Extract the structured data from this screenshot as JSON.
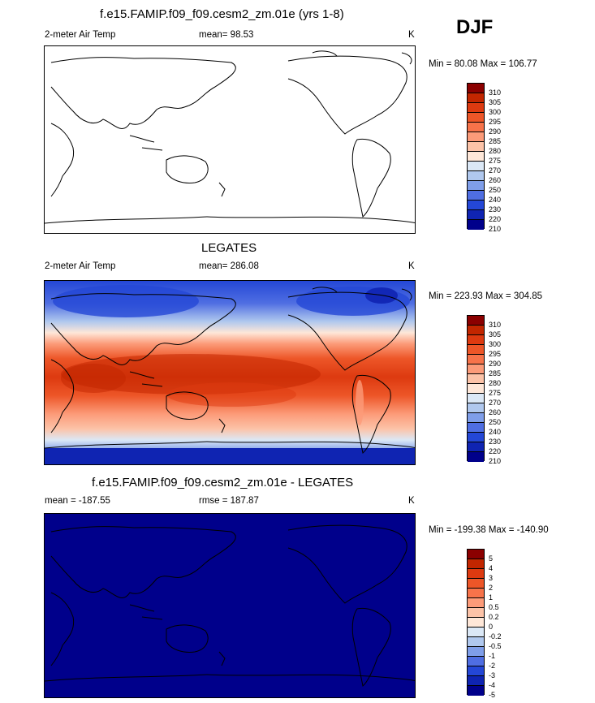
{
  "season": "DJF",
  "panels": [
    {
      "title": "f.e15.FAMIP.f09_f09.cesm2_zm.01e (yrs 1-8)",
      "left_label": "2-meter Air Temp",
      "center_label": "mean=  98.53",
      "units": "K",
      "minmax": "Min =  80.08 Max = 106.77",
      "fill": "white",
      "colorbar_labels": [
        "310",
        "305",
        "300",
        "295",
        "290",
        "285",
        "280",
        "275",
        "270",
        "260",
        "250",
        "240",
        "230",
        "220",
        "210"
      ]
    },
    {
      "title": "LEGATES",
      "left_label": "2-meter Air Temp",
      "center_label": "mean= 286.08",
      "units": "K",
      "minmax": "Min = 223.93 Max = 304.85",
      "fill": "temperature-field",
      "colorbar_labels": [
        "310",
        "305",
        "300",
        "295",
        "290",
        "285",
        "280",
        "275",
        "270",
        "260",
        "250",
        "240",
        "230",
        "220",
        "210"
      ]
    },
    {
      "title": "f.e15.FAMIP.f09_f09.cesm2_zm.01e - LEGATES",
      "left_label": "mean = -187.55",
      "center_label": "rmse = 187.87",
      "units": "K",
      "minmax": "Min = -199.38 Max = -140.90",
      "fill": "#00008b",
      "colorbar_labels": [
        "5",
        "4",
        "3",
        "2",
        "1",
        "0.5",
        "0.2",
        "0",
        "-0.2",
        "-0.5",
        "-1",
        "-2",
        "-3",
        "-4",
        "-5"
      ]
    }
  ],
  "colorbar_colors": [
    "#8b0000",
    "#c22600",
    "#dd3a10",
    "#ed5628",
    "#f7734a",
    "#fc9b79",
    "#fcc3a8",
    "#fee7d8",
    "#dbe8f6",
    "#b0c8ee",
    "#7f9ee9",
    "#4f6ee2",
    "#2447d6",
    "#0f24b2",
    "#00008b"
  ]
}
